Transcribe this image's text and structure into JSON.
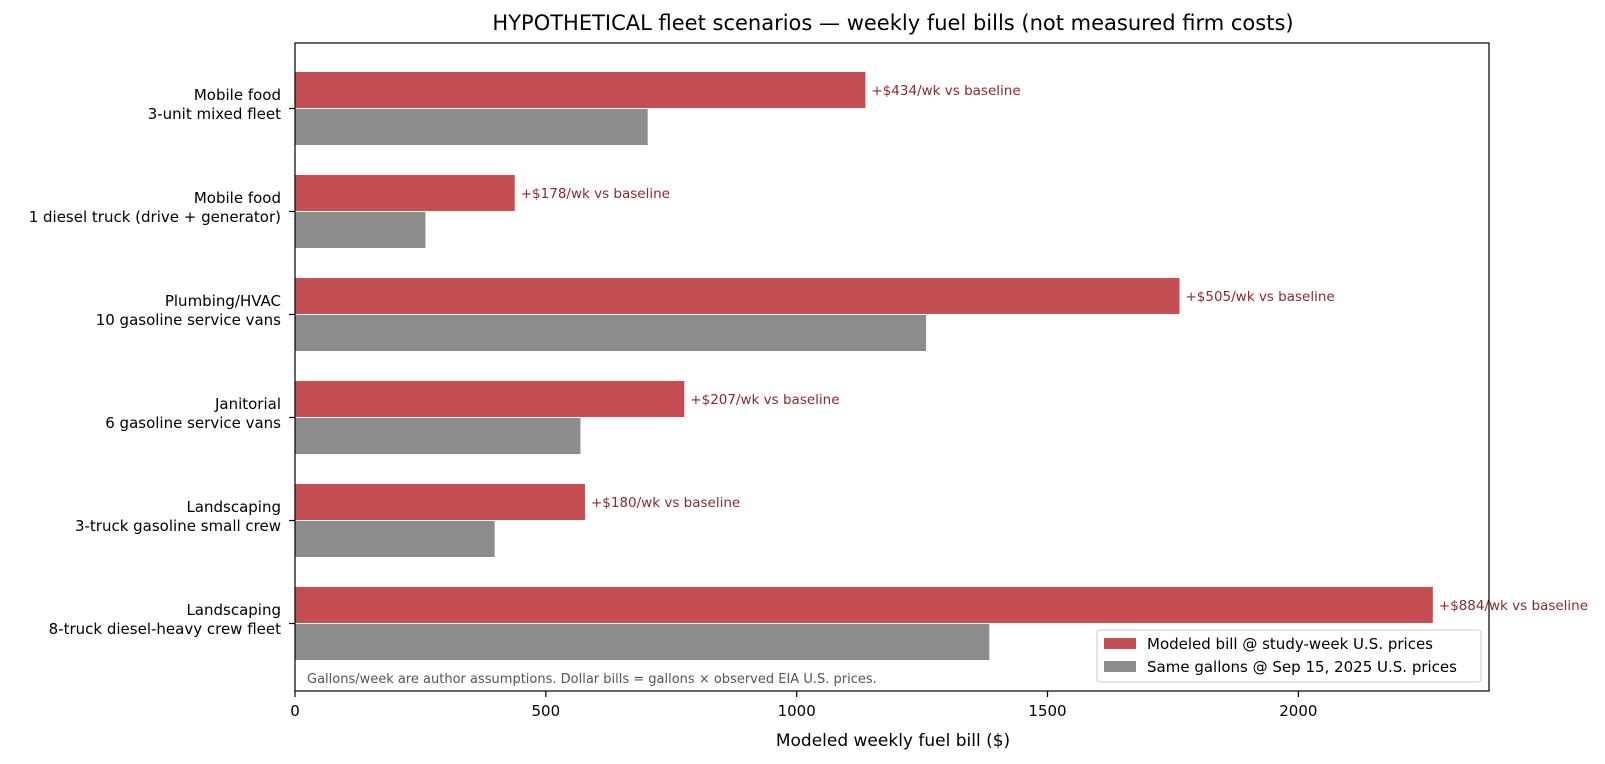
{
  "chart_data": {
    "type": "bar",
    "orientation": "horizontal",
    "title": "HYPOTHETICAL fleet scenarios — weekly fuel bills (not measured firm costs)",
    "xlabel": "Modeled weekly fuel bill ($)",
    "ylabel": "",
    "xlim": [
      0,
      2380
    ],
    "xticks": [
      0,
      500,
      1000,
      1500,
      2000
    ],
    "categories": [
      [
        "Mobile food",
        "3-unit mixed fleet"
      ],
      [
        "Mobile food",
        "1 diesel truck (drive + generator)"
      ],
      [
        "Plumbing/HVAC",
        "10 gasoline service vans"
      ],
      [
        "Janitorial",
        "6 gasoline service vans"
      ],
      [
        "Landscaping",
        "3-truck gasoline small crew"
      ],
      [
        "Landscaping",
        "8-truck diesel-heavy crew fleet"
      ]
    ],
    "series": [
      {
        "name": "Modeled bill @ study-week U.S. prices",
        "color": "#c44e52",
        "values": [
          1137,
          438,
          1763,
          776,
          578,
          2268
        ]
      },
      {
        "name": "Same gallons @ Sep 15, 2025 U.S. prices",
        "color": "#8c8c8c",
        "values": [
          703,
          260,
          1258,
          569,
          398,
          1384
        ]
      }
    ],
    "annotations": [
      "+$434/wk vs baseline",
      "+$178/wk vs baseline",
      "+$505/wk vs baseline",
      "+$207/wk vs baseline",
      "+$180/wk vs baseline",
      "+$884/wk vs baseline"
    ],
    "note": "Gallons/week are author assumptions. Dollar bills = gallons × observed EIA U.S. prices.",
    "legend_position": "bottom-right",
    "grid": false
  }
}
